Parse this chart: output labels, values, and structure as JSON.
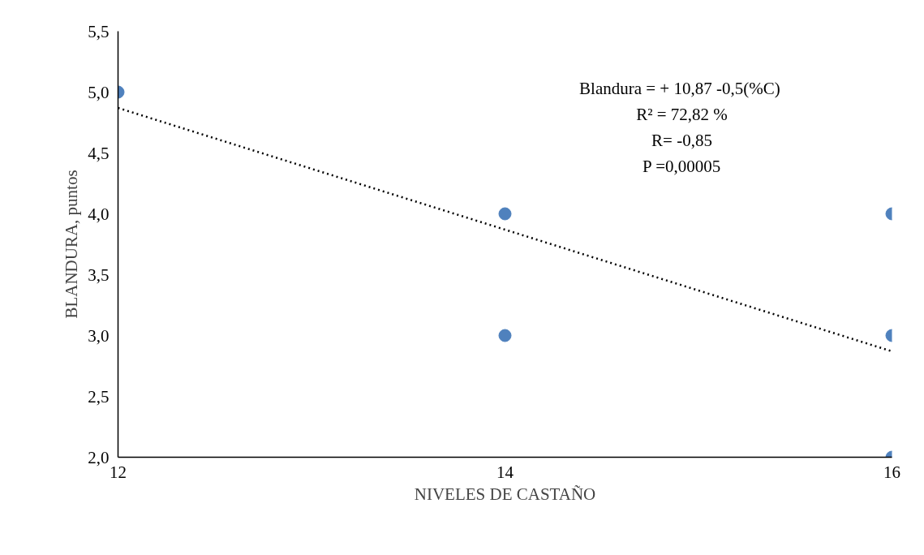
{
  "chart_data": {
    "type": "scatter",
    "xlabel": "NIVELES DE CASTAÑO",
    "ylabel": "BLANDURA, puntos",
    "annotations": [
      "Blandura  = + 10,87 -0,5(%C)",
      "R² = 72,82 %",
      "R= -0,85",
      "P =0,00005"
    ],
    "series": [
      {
        "color": "#4f81bd",
        "marker": "circle",
        "x": [
          12,
          14,
          14,
          16,
          16,
          16
        ],
        "values": [
          5,
          4,
          3,
          4,
          3,
          2
        ]
      },
      {
        "type": "line",
        "color": "#000000",
        "line_style": "dotted",
        "marker": "none",
        "x": [
          12,
          16
        ],
        "values": [
          4.87,
          2.87
        ]
      }
    ],
    "xlim": [
      12,
      16
    ],
    "xticks": [
      12,
      14,
      16
    ],
    "ylim": [
      2,
      5.5
    ],
    "yticks": [
      {
        "value": 2,
        "label": "2,0"
      },
      {
        "value": 2.5,
        "label": "2,5"
      },
      {
        "value": 3,
        "label": "3,0"
      },
      {
        "value": 3.5,
        "label": "3,5"
      },
      {
        "value": 4,
        "label": "4,0"
      },
      {
        "value": 4.5,
        "label": "4,5"
      },
      {
        "value": 5,
        "label": "5,0"
      },
      {
        "value": 5.5,
        "label": "5,5"
      }
    ],
    "grid": false
  }
}
